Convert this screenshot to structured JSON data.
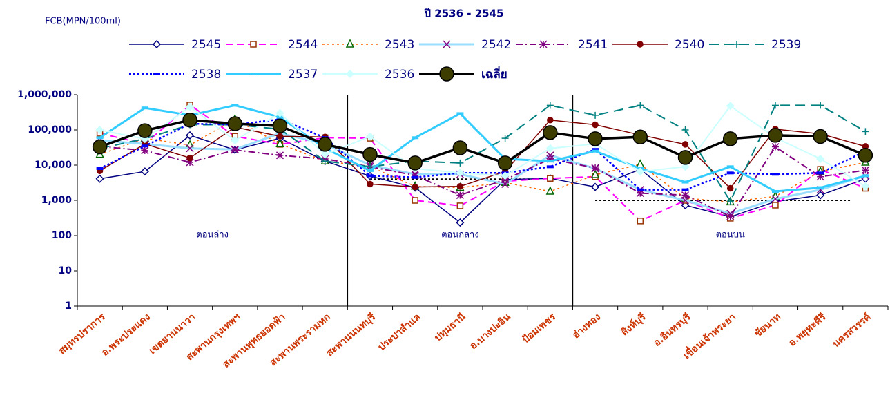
{
  "chart_data": {
    "type": "line",
    "title": "ปี 2536 - 2545",
    "y_label": "FCB(MPN/100ml)",
    "log_scale": true,
    "categories": [
      "สมุทรปราการ",
      "อ.พระประแดง",
      "เขตยานนาวา",
      "สะพานกรุงเทพฯ",
      "สะพานพุทธยอดฟ้า",
      "สะพานพระรามหก",
      "สะพานนนทบุรี",
      "ประปาสำแล",
      "ปทุมธานี",
      "อ.บางปะอิน",
      "ป้อมเพชร",
      "อ่างทอง",
      "สิงห์บุรี",
      "อ.อินทรบุรี",
      "เขื่อนเจ้าพระยา",
      "ชัยนาท",
      "อ.พยุหะคีรี",
      "นครสวรรค์"
    ],
    "ylim": [
      1,
      1000000
    ],
    "yticks": [
      1,
      10,
      100,
      {
        "value": 1000,
        "label": "1,000"
      },
      {
        "value": 10000,
        "label": "10,000"
      },
      {
        "value": 100000,
        "label": "100,000"
      },
      {
        "value": 1000000,
        "label": "1,000,000"
      }
    ],
    "sections": [
      {
        "label": "ตอนล่าง",
        "first": "สมุทรปราการ",
        "last": "สะพานพระรามหก"
      },
      {
        "label": "ตอนกลาง",
        "first": "สะพานนนทบุรี",
        "last": "ป้อมเพชร"
      },
      {
        "label": "ตอนบน",
        "first": "อ่างทอง",
        "last": "นครสวรรค์"
      }
    ],
    "reference_lines": [
      {
        "value": 4000,
        "first": "สะพานนนทบุรี",
        "last": "ป้อมเพชร"
      },
      {
        "value": 1000,
        "first": "อ่างทอง",
        "last": "นครสวรรค์"
      }
    ],
    "series": [
      {
        "name": "2545",
        "color": "#000080",
        "dash": "none",
        "width": 1.5,
        "marker": "diamond",
        "marker_color": "#000080",
        "values": [
          4100,
          6600,
          70000,
          27000,
          58000,
          13000,
          4900,
          2300,
          235,
          3900,
          4200,
          2400,
          7600,
          730,
          340,
          920,
          1400,
          4100
        ]
      },
      {
        "name": "2544",
        "color": "#ff00ff",
        "dash": "10 6",
        "width": 2,
        "marker": "square",
        "marker_color": "#993300",
        "values": [
          80000,
          40000,
          510000,
          66000,
          39000,
          60000,
          58000,
          1000,
          700,
          3500,
          4200,
          4700,
          260,
          1000,
          310,
          730,
          7600,
          2200
        ]
      },
      {
        "name": "2543",
        "color": "#ff6600",
        "dash": "3 4",
        "width": 1.5,
        "marker": "triangle",
        "marker_color": "#006600",
        "values": [
          20000,
          58000,
          37000,
          200000,
          40000,
          13000,
          9100,
          2500,
          2300,
          3200,
          1800,
          5300,
          10500,
          1150,
          900,
          1300,
          6600,
          12000
        ]
      },
      {
        "name": "2542",
        "color": "#99ddff",
        "dash": "none",
        "width": 3,
        "marker": "x",
        "marker_color": "#800080",
        "values": [
          50000,
          40000,
          30000,
          28000,
          80000,
          40000,
          10000,
          5500,
          5500,
          2900,
          19000,
          8000,
          2000,
          1000,
          420,
          1100,
          2000,
          5000
        ]
      },
      {
        "name": "2541",
        "color": "#800080",
        "dash": "10 4 2 4",
        "width": 2,
        "marker": "star",
        "marker_color": "#800080",
        "values": [
          34000,
          26000,
          12000,
          27000,
          19000,
          15000,
          9000,
          5100,
          1400,
          3900,
          15000,
          8300,
          1600,
          1400,
          350,
          33000,
          4700,
          7200
        ]
      },
      {
        "name": "2540",
        "color": "#800000",
        "dash": "none",
        "width": 1.5,
        "marker": "circle",
        "marker_color": "#800000",
        "values": [
          6900,
          40000,
          16000,
          120000,
          66000,
          63000,
          2900,
          2400,
          2500,
          6600,
          190000,
          140000,
          72000,
          39000,
          2200,
          105000,
          77000,
          34000
        ]
      },
      {
        "name": "2539",
        "color": "#008080",
        "dash": "14 8",
        "width": 2,
        "marker": "plus",
        "marker_color": "#008080",
        "values": [
          30000,
          56000,
          140000,
          140000,
          105000,
          13000,
          9000,
          13000,
          11500,
          58000,
          500000,
          260000,
          500000,
          100000,
          950,
          500000,
          500000,
          90000
        ]
      },
      {
        "name": "2538",
        "color": "#0000ff",
        "dash": "3 3",
        "width": 2.5,
        "marker": "dash",
        "marker_color": "#0000ff",
        "values": [
          8000,
          35000,
          150000,
          140000,
          200000,
          60000,
          5000,
          4500,
          6000,
          6000,
          9000,
          28000,
          2000,
          2000,
          6000,
          5500,
          6000,
          25000
        ]
      },
      {
        "name": "2537",
        "color": "#33ccff",
        "dash": "none",
        "width": 3,
        "marker": "dash",
        "marker_color": "#33ccff",
        "values": [
          60000,
          420000,
          260000,
          500000,
          230000,
          30000,
          7000,
          60000,
          290000,
          15000,
          13000,
          25000,
          8000,
          3300,
          9000,
          1800,
          2300,
          5000
        ]
      },
      {
        "name": "2536",
        "color": "#ccffff",
        "dash": "none",
        "width": 2,
        "marker": "fdiamond",
        "marker_color": "#ccffff",
        "values": [
          100000,
          55000,
          450000,
          50000,
          300000,
          20000,
          65000,
          8000,
          6000,
          5000,
          30000,
          40000,
          6500,
          9000,
          480000,
          60000,
          15000,
          2500
        ]
      },
      {
        "name": "เฉลี่ย",
        "color": "#000000",
        "dash": "none",
        "width": 3.5,
        "marker": "big",
        "marker_color": "#3d3d00",
        "values": [
          33000,
          95000,
          190000,
          150000,
          130000,
          39000,
          20000,
          11500,
          31000,
          11500,
          84000,
          56000,
          63000,
          16500,
          56000,
          70000,
          65000,
          19000
        ]
      }
    ]
  }
}
